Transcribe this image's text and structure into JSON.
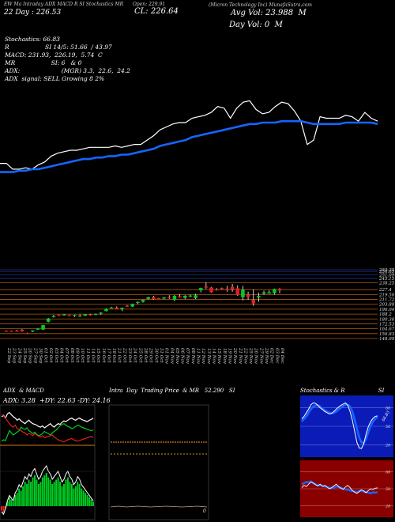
{
  "header": {
    "tabs": "EW Ma Intraday ADX MACD R SI Stochastics MR",
    "open_label": "Open: 229.91",
    "close_label": "CL: 226.64",
    "day_range": "22 Day : 226.53",
    "company": "(Micron Technology Inc) MunafaSutra.com",
    "avg_vol": "Avg Vol: 23.988  M",
    "day_vol": "Day Vol: 0  M"
  },
  "indicators": {
    "stoch": "Stochastics: 66.83",
    "rsi": "R                   SI 14/5: 51.66  / 43.97",
    "macd": "MACD: 231.93,  226.19,  5.74  C",
    "mr": "MR                   SI: 6   & 0",
    "adx": "ADX:                      (MGR) 3.3,  22.6,  24.2",
    "signal": "ADX  signal: SELL Growing 8 2%"
  },
  "colors": {
    "ma_line": "#1565ff",
    "up": "#00cc22",
    "down": "#e02020",
    "grid": "#b05a10",
    "blue_grid": "#1f2f8a",
    "red_panel": "#8a0000"
  },
  "chart_data": [
    {
      "type": "line",
      "name": "price-overview",
      "series": [
        {
          "name": "close",
          "values": [
            205,
            205,
            201,
            201,
            202,
            201,
            204,
            206,
            210,
            212,
            213,
            214,
            214,
            215,
            216,
            216,
            216,
            216,
            217,
            216,
            217,
            218,
            218,
            221,
            224,
            228,
            230,
            232,
            233,
            233,
            236,
            237,
            238,
            240,
            244,
            243,
            236,
            243,
            247,
            248,
            242,
            239,
            240,
            244,
            247,
            246,
            241,
            234,
            218,
            221,
            237,
            236,
            236,
            236,
            238,
            237,
            234,
            240,
            236,
            234
          ]
        },
        {
          "name": "ma",
          "values": [
            199,
            199,
            199,
            200,
            200,
            201,
            201,
            202,
            203,
            204,
            205,
            206,
            207,
            208,
            208,
            209,
            209,
            210,
            210,
            211,
            211,
            212,
            213,
            214,
            215,
            217,
            218,
            219,
            220,
            221,
            223,
            224,
            225,
            226,
            227,
            228,
            229,
            230,
            231,
            232,
            232,
            233,
            233,
            233,
            234,
            234,
            234,
            234,
            233,
            232,
            232,
            232,
            232,
            232,
            233,
            233,
            233,
            233,
            233,
            232
          ]
        }
      ]
    },
    {
      "type": "candlestick",
      "name": "daily-candles",
      "categories": [
        "22 Sep",
        "23 Sep",
        "24 Sep",
        "25 Sep",
        "26 Sep",
        "27 Sep",
        "30 Sep",
        "01 Oct",
        "02 Oct",
        "03 Oct",
        "04 Oct",
        "07 Oct",
        "08 Oct",
        "09 Oct",
        "10 Oct",
        "11 Oct",
        "14 Oct",
        "15 Oct",
        "16 Oct",
        "17 Oct",
        "18 Oct",
        "21 Oct",
        "22 Oct",
        "23 Oct",
        "24 Oct",
        "25 Oct",
        "28 Oct",
        "29 Oct",
        "30 Oct",
        "31 Oct",
        "01 Nov",
        "04 Nov",
        "05 Nov",
        "06 Nov",
        "07 Nov",
        "08 Nov",
        "11 Nov",
        "12 Nov",
        "13 Nov",
        "14 Nov",
        "15 Nov",
        "18 Nov",
        "19 Nov",
        "20 Nov",
        "21 Nov",
        "22 Nov",
        "25 Nov",
        "26 Nov",
        "27 Nov",
        "29 Nov",
        "02 Dec",
        "03 Dec",
        "04 Dec"
      ],
      "ohlc": [
        [
          161.4,
          162.0,
          160.5,
          161.2
        ],
        [
          161.2,
          161.6,
          160.8,
          161.0
        ],
        [
          161.5,
          163.0,
          160.2,
          160.6
        ],
        [
          163.0,
          164.2,
          160.0,
          160.4
        ],
        [
          157.6,
          158.4,
          156.9,
          157.3
        ],
        [
          160.2,
          162.2,
          159.3,
          162.0
        ],
        [
          163.2,
          166.0,
          162.8,
          165.0
        ],
        [
          163.3,
          171.1,
          163.0,
          170.5
        ],
        [
          176.0,
          182.0,
          175.0,
          181.0
        ],
        [
          184.0,
          186.7,
          182.6,
          185.0
        ],
        [
          186.7,
          187.5,
          185.2,
          186.4
        ],
        [
          187.2,
          188.2,
          186.2,
          187.5
        ],
        [
          186.6,
          187.3,
          185.0,
          186.0
        ],
        [
          185.7,
          187.2,
          183.5,
          186.8
        ],
        [
          185.2,
          187.8,
          185.0,
          185.5
        ],
        [
          185.4,
          187.9,
          185.0,
          187.7
        ],
        [
          187.7,
          188.5,
          186.0,
          187.5
        ],
        [
          187.9,
          189.0,
          186.5,
          188.6
        ],
        [
          189.5,
          191.0,
          187.0,
          190.5
        ],
        [
          193.0,
          197.7,
          192.5,
          196.8
        ],
        [
          198.3,
          199.8,
          197.3,
          198.6
        ],
        [
          198.7,
          200.6,
          195.8,
          196.2
        ],
        [
          196.5,
          198.7,
          193.0,
          198.0
        ],
        [
          201.5,
          202.6,
          200.0,
          201.1
        ],
        [
          200.3,
          205.1,
          199.5,
          204.3
        ],
        [
          206.2,
          208.4,
          203.7,
          207.7
        ],
        [
          208.1,
          211.3,
          206.6,
          210.9
        ],
        [
          212.6,
          215.9,
          211.6,
          215.2
        ],
        [
          215.5,
          217.5,
          211.2,
          212.3
        ],
        [
          213.7,
          214.1,
          213.0,
          213.6
        ],
        [
          213.3,
          215.3,
          212.0,
          215.0
        ],
        [
          215.5,
          218.5,
          212.6,
          214.3
        ],
        [
          211.5,
          218.6,
          209.0,
          217.5
        ],
        [
          216.8,
          219.8,
          214.6,
          214.9
        ],
        [
          214.1,
          218.6,
          212.1,
          217.4
        ],
        [
          217.3,
          219.2,
          215.1,
          217.9
        ],
        [
          214.0,
          220.6,
          212.2,
          218.3
        ],
        [
          226.5,
          230.6,
          223.0,
          230.0
        ],
        [
          232.3,
          239.3,
          228.6,
          231.6
        ],
        [
          230.9,
          231.7,
          222.5,
          223.2
        ],
        [
          227.6,
          229.9,
          225.8,
          227.1
        ],
        [
          229.8,
          230.7,
          227.5,
          229.0
        ],
        [
          228.7,
          233.5,
          224.0,
          226.5
        ],
        [
          232.0,
          236.5,
          224.0,
          227.5
        ],
        [
          229.6,
          234.2,
          217.2,
          218.5
        ],
        [
          215.2,
          233.5,
          210.0,
          227.2
        ],
        [
          219.6,
          224.1,
          211.0,
          215.7
        ],
        [
          211.3,
          227.9,
          201.4,
          205.3
        ],
        [
          214.7,
          222.5,
          208.0,
          217.2
        ],
        [
          220.9,
          225.6,
          219.0,
          223.1
        ],
        [
          221.2,
          226.2,
          220.8,
          223.0
        ],
        [
          221.8,
          229.1,
          219.4,
          228.3
        ],
        [
          228.5,
          229.9,
          221.6,
          226.0
        ]
      ],
      "ylabels": [
        "259.35",
        "256.65",
        "251.09",
        "245.15",
        "238.25",
        "227.4",
        "219.56",
        "211.72",
        "203.88",
        "196.04",
        "188.2",
        "180.36",
        "172.53",
        "164.67",
        "156.83",
        "148.99"
      ]
    },
    {
      "type": "line",
      "name": "adx-macd",
      "title": "ADX  & MACD",
      "readout": "ADX: 3.28  +DY: 22.63 -DY: 24.16",
      "series": [
        {
          "name": "adx",
          "values": [
            60,
            62,
            58,
            64,
            66,
            63,
            60,
            58,
            55,
            57,
            54,
            52,
            50,
            53,
            55,
            52,
            50,
            49,
            48,
            46,
            45,
            47,
            44,
            46,
            48,
            50,
            47,
            45,
            48,
            50,
            49,
            52,
            54,
            53,
            55,
            57,
            58,
            56,
            55,
            57,
            58,
            56,
            55,
            54,
            53,
            55,
            56,
            58
          ]
        },
        {
          "name": "di-plus",
          "values": [
            25,
            27,
            26,
            33,
            40,
            37,
            34,
            36,
            38,
            40,
            45,
            43,
            42,
            44,
            40,
            38,
            36,
            38,
            35,
            33,
            34,
            36,
            39,
            37,
            36,
            34,
            37,
            39,
            41,
            44,
            47,
            49,
            50,
            48,
            46,
            45,
            43,
            44,
            46,
            48,
            47,
            45,
            44,
            43,
            42,
            41,
            40,
            41
          ]
        },
        {
          "name": "di-minus",
          "values": [
            63,
            61,
            58,
            54,
            50,
            47,
            45,
            48,
            43,
            42,
            40,
            38,
            37,
            34,
            36,
            35,
            33,
            36,
            34,
            32,
            31,
            33,
            30,
            31,
            32,
            33,
            34,
            31,
            29,
            27,
            26,
            25,
            24,
            26,
            27,
            28,
            29,
            27,
            26,
            25,
            26,
            27,
            28,
            29,
            30,
            31,
            32,
            30
          ]
        },
        {
          "name": "histogram",
          "values": [
            -2,
            -3,
            -1,
            2,
            4,
            3,
            2,
            5,
            6,
            8,
            7,
            9,
            11,
            10,
            12,
            11,
            13,
            14,
            12,
            10,
            11,
            13,
            14,
            15,
            13,
            12,
            10,
            11,
            12,
            13,
            11,
            9,
            10,
            12,
            13,
            11,
            10,
            8,
            9,
            11,
            10,
            8,
            7,
            6,
            5,
            4,
            3,
            2
          ]
        }
      ]
    },
    {
      "type": "line",
      "name": "intraday",
      "title": "Intra  Day  Trading Price  & MR   52.290   SI",
      "annotation": "0"
    },
    {
      "type": "line",
      "name": "stochastics-rsi",
      "title": "Stochastics & R                   SI",
      "readout": "66.83",
      "ticks": [
        "80",
        "50",
        "20"
      ],
      "rsi_ticks": [
        "80",
        "50",
        "20"
      ],
      "series": [
        {
          "name": "stoch",
          "values": [
            62,
            66,
            72,
            78,
            85,
            88,
            87,
            84,
            80,
            77,
            74,
            72,
            70,
            71,
            74,
            78,
            81,
            84,
            86,
            88,
            84,
            74,
            60,
            42,
            24,
            15,
            14,
            22,
            38,
            50,
            58,
            63,
            66,
            66.83
          ]
        },
        {
          "name": "stoch-signal",
          "values": [
            58,
            62,
            66,
            72,
            78,
            82,
            84,
            84,
            82,
            79,
            76,
            74,
            72,
            71,
            72,
            74,
            77,
            80,
            83,
            85,
            85,
            82,
            74,
            61,
            46,
            32,
            24,
            23,
            30,
            41,
            51,
            58,
            62,
            65
          ]
        },
        {
          "name": "rsi",
          "values": [
            52,
            56,
            54,
            58,
            62,
            60,
            57,
            55,
            58,
            54,
            56,
            53,
            50,
            52,
            55,
            58,
            54,
            51,
            49,
            53,
            56,
            52,
            47,
            44,
            42,
            45,
            48,
            46,
            43,
            47,
            50,
            49,
            51,
            51.66
          ]
        },
        {
          "name": "mr",
          "values": [
            58,
            60,
            62,
            61,
            63,
            60,
            58,
            56,
            57,
            55,
            54,
            53,
            52,
            51,
            52,
            54,
            53,
            52,
            50,
            49,
            48,
            47,
            46,
            45,
            44,
            46,
            47,
            45,
            44,
            43,
            42,
            44,
            43,
            43.97
          ]
        }
      ]
    }
  ]
}
